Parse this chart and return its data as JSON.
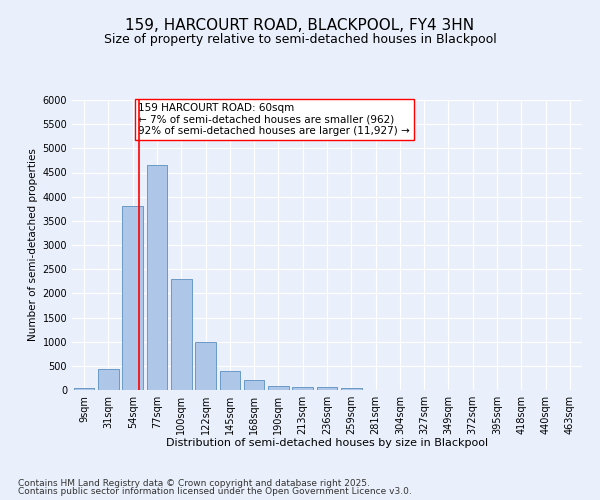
{
  "title": "159, HARCOURT ROAD, BLACKPOOL, FY4 3HN",
  "subtitle": "Size of property relative to semi-detached houses in Blackpool",
  "xlabel": "Distribution of semi-detached houses by size in Blackpool",
  "ylabel": "Number of semi-detached properties",
  "bar_labels": [
    "9sqm",
    "31sqm",
    "54sqm",
    "77sqm",
    "100sqm",
    "122sqm",
    "145sqm",
    "168sqm",
    "190sqm",
    "213sqm",
    "236sqm",
    "259sqm",
    "281sqm",
    "304sqm",
    "327sqm",
    "349sqm",
    "372sqm",
    "395sqm",
    "418sqm",
    "440sqm",
    "463sqm"
  ],
  "bar_values": [
    50,
    430,
    3800,
    4650,
    2300,
    1000,
    400,
    200,
    90,
    70,
    70,
    40,
    0,
    0,
    0,
    0,
    0,
    0,
    0,
    0,
    0
  ],
  "bar_color": "#aec6e8",
  "bar_edge_color": "#5a8fc0",
  "vline_color": "red",
  "annotation_text": "159 HARCOURT ROAD: 60sqm\n← 7% of semi-detached houses are smaller (962)\n92% of semi-detached houses are larger (11,927) →",
  "annotation_box_color": "white",
  "annotation_box_edge": "red",
  "ylim": [
    0,
    6000
  ],
  "yticks": [
    0,
    500,
    1000,
    1500,
    2000,
    2500,
    3000,
    3500,
    4000,
    4500,
    5000,
    5500,
    6000
  ],
  "background_color": "#eaf0fb",
  "footer_line1": "Contains HM Land Registry data © Crown copyright and database right 2025.",
  "footer_line2": "Contains public sector information licensed under the Open Government Licence v3.0.",
  "title_fontsize": 11,
  "subtitle_fontsize": 9,
  "xlabel_fontsize": 8,
  "ylabel_fontsize": 7.5,
  "tick_fontsize": 7,
  "annotation_fontsize": 7.5,
  "footer_fontsize": 6.5
}
